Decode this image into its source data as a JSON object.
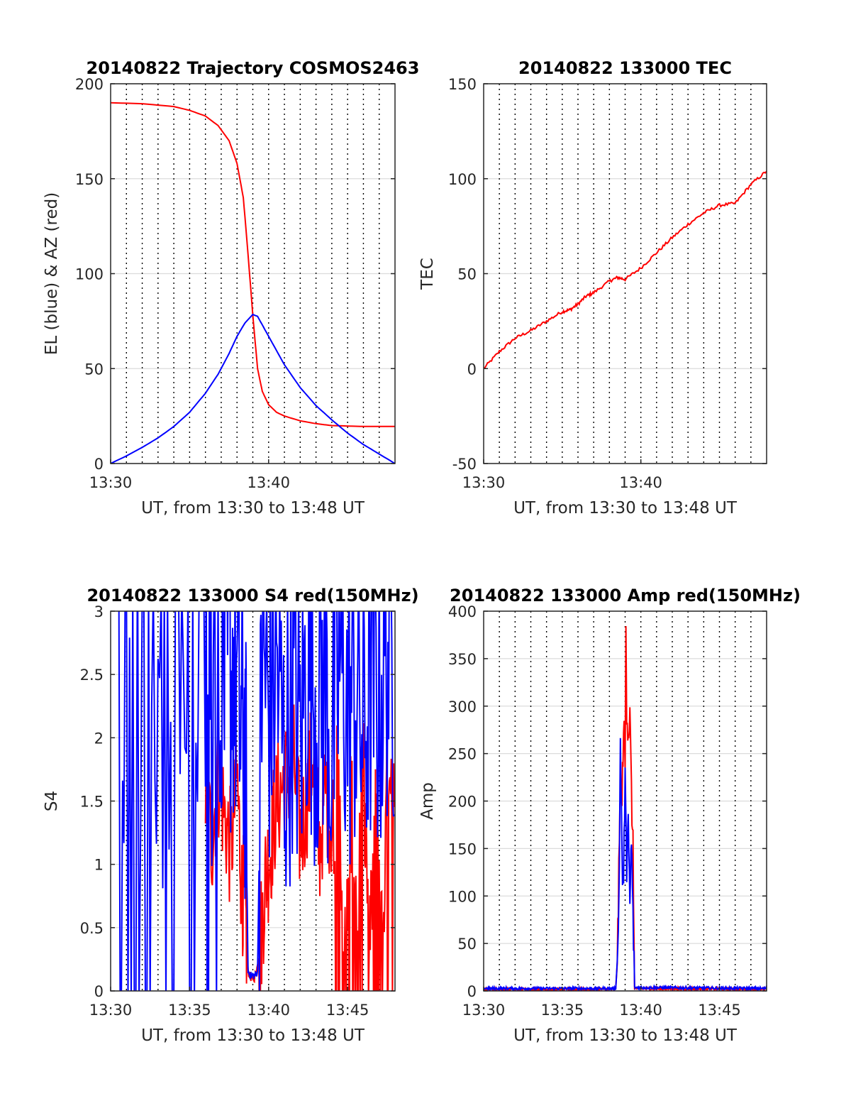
{
  "figure": {
    "background": "#ffffff",
    "colors": {
      "red": "#ff0000",
      "blue": "#0000ff",
      "grid": "#dcdcdc",
      "axis": "#262626"
    }
  },
  "chart_data": [
    {
      "id": "trajectory",
      "type": "line",
      "title": "20140822 Trajectory COSMOS2463",
      "xlabel": "UT, from 13:30 to 13:48 UT",
      "ylabel": "EL (blue) & AZ (red)",
      "xlim": [
        0,
        18
      ],
      "ylim": [
        0,
        200
      ],
      "xticks": [
        0,
        10
      ],
      "xtick_labels": [
        "13:30",
        "13:40"
      ],
      "yticks": [
        0,
        50,
        100,
        150,
        200
      ],
      "ytick_labels": [
        "0",
        "50",
        "100",
        "150",
        "200"
      ],
      "x_unit": "minutes after 13:30 UT",
      "grid": true,
      "series": [
        {
          "color": "#ff0000",
          "x": [
            0,
            2,
            4,
            5,
            6,
            6.8,
            7.5,
            8,
            8.4,
            8.7,
            9,
            9.3,
            9.6,
            10,
            10.5,
            11,
            12,
            13,
            14,
            16,
            18
          ],
          "y": [
            190,
            189.5,
            188,
            186,
            183,
            178,
            170,
            158,
            140,
            110,
            78,
            50,
            38,
            31,
            27,
            25,
            22.5,
            21,
            20,
            19.5,
            19.5
          ]
        },
        {
          "color": "#0000ff",
          "x": [
            0,
            1,
            2,
            3,
            4,
            5,
            6,
            6.8,
            7.5,
            8,
            8.5,
            9,
            9.3,
            9.6,
            10,
            10.5,
            11,
            12,
            13,
            14,
            15,
            16,
            17,
            18
          ],
          "y": [
            0,
            4,
            8.5,
            13.5,
            19.5,
            27,
            37,
            47,
            58,
            67,
            74,
            78.5,
            77.5,
            73,
            67,
            59.5,
            52,
            40,
            30.5,
            23,
            16,
            10,
            5,
            0
          ]
        }
      ]
    },
    {
      "id": "tec",
      "type": "line",
      "title": "20140822 133000 TEC",
      "xlabel": "UT, from 13:30 to 13:48 UT",
      "ylabel": "TEC",
      "xlim": [
        0,
        18
      ],
      "ylim": [
        -50,
        150
      ],
      "xticks": [
        0,
        10
      ],
      "xtick_labels": [
        "13:30",
        "13:40"
      ],
      "yticks": [
        -50,
        0,
        50,
        100,
        150
      ],
      "ytick_labels": [
        "-50",
        "0",
        "50",
        "100",
        "150"
      ],
      "x_unit": "minutes after 13:30 UT",
      "grid": true,
      "series": [
        {
          "color": "#ff0000",
          "x": [
            0,
            1,
            2,
            3,
            4,
            5,
            5.5,
            6,
            6.5,
            7,
            8,
            8.5,
            9,
            10,
            11,
            12,
            13,
            14,
            15,
            16,
            17,
            18
          ],
          "y": [
            0,
            9,
            16,
            20,
            25,
            30,
            31,
            34,
            38,
            40,
            46,
            48,
            47,
            53,
            61,
            69,
            76,
            82,
            86,
            87,
            97,
            104
          ]
        }
      ]
    },
    {
      "id": "s4",
      "type": "line",
      "title": "20140822 133000 S4 red(150MHz)",
      "xlabel": "UT, from 13:30 to 13:48 UT",
      "ylabel": "S4",
      "xlim": [
        0,
        18
      ],
      "ylim": [
        0,
        3
      ],
      "xticks": [
        0,
        5,
        10,
        15
      ],
      "xtick_labels": [
        "13:30",
        "13:35",
        "13:40",
        "13:45"
      ],
      "yticks": [
        0,
        0.5,
        1,
        1.5,
        2,
        2.5,
        3
      ],
      "ytick_labels": [
        "0",
        "0.5",
        "1",
        "1.5",
        "2",
        "2.5",
        "3"
      ],
      "x_unit": "minutes after 13:30 UT",
      "grid": true,
      "series": [
        {
          "color": "#ff0000",
          "x": [
            6.0,
            6.4,
            6.8,
            7.2,
            7.6,
            8.0,
            8.3,
            8.5,
            8.7,
            8.9,
            9.1,
            9.3,
            9.5,
            9.8,
            10.1,
            10.4,
            10.8,
            11.2,
            11.6,
            12.0,
            12.4,
            12.8,
            13.2,
            13.6,
            14.0,
            14.4,
            14.8,
            15.2,
            15.6,
            16.0,
            16.4,
            16.8,
            17.2,
            17.6,
            18.0
          ],
          "y": [
            1.5,
            1.2,
            1.7,
            1.4,
            1.1,
            1.7,
            0.8,
            0.7,
            0.15,
            0.1,
            0.1,
            0.2,
            0.4,
            0.9,
            1.1,
            1.4,
            1.6,
            1.7,
            1.8,
            1.2,
            1.5,
            1.9,
            1.1,
            1.6,
            1.3,
            1.7,
            0.2,
            1.5,
            0.6,
            1.8,
            0.3,
            1.6,
            0.4,
            1.9,
            1.5
          ]
        },
        {
          "color": "#0000ff",
          "x": [
            0.2,
            1.0,
            2.0,
            3.0,
            4.0,
            5.0,
            6.0,
            6.5,
            7.0,
            7.4,
            7.8,
            8.2,
            8.5,
            8.7,
            8.9,
            9.1,
            9.3,
            9.6,
            10.0,
            10.5,
            11.0,
            11.5,
            12.0,
            12.5,
            13.0,
            13.5,
            14.0,
            14.5,
            15.0,
            15.5,
            16.0,
            16.5,
            17.0,
            17.5,
            18.0
          ],
          "y": [
            2.5,
            2.2,
            2.6,
            2.0,
            2.4,
            2.1,
            2.6,
            2.2,
            2.8,
            2.4,
            2.6,
            2.1,
            2.0,
            0.15,
            0.12,
            0.12,
            0.15,
            2.8,
            2.2,
            2.6,
            1.8,
            2.4,
            2.0,
            2.7,
            2.3,
            2.5,
            1.9,
            2.6,
            2.2,
            2.4,
            2.0,
            2.5,
            2.3,
            2.7,
            2.6
          ]
        }
      ]
    },
    {
      "id": "amp",
      "type": "line",
      "title": "20140822 133000 Amp red(150MHz)",
      "xlabel": "UT, from 13:30 to 13:48 UT",
      "ylabel": "Amp",
      "xlim": [
        0,
        18
      ],
      "ylim": [
        0,
        400
      ],
      "xticks": [
        0,
        5,
        10,
        15
      ],
      "xtick_labels": [
        "13:30",
        "13:35",
        "13:40",
        "13:45"
      ],
      "yticks": [
        0,
        50,
        100,
        150,
        200,
        250,
        300,
        350,
        400
      ],
      "ytick_labels": [
        "0",
        "50",
        "100",
        "150",
        "200",
        "250",
        "300",
        "350",
        "400"
      ],
      "x_unit": "minutes after 13:30 UT",
      "grid": true,
      "series": [
        {
          "color": "#ff0000",
          "x": [
            0,
            8.4,
            8.5,
            8.6,
            8.7,
            8.8,
            8.9,
            9.0,
            9.05,
            9.1,
            9.2,
            9.3,
            9.4,
            9.5,
            9.6,
            18
          ],
          "y": [
            1,
            1,
            30,
            120,
            220,
            200,
            280,
            240,
            385,
            300,
            270,
            290,
            210,
            150,
            2,
            1
          ]
        },
        {
          "color": "#0000ff",
          "x": [
            0,
            8.4,
            8.5,
            8.6,
            8.7,
            8.8,
            8.9,
            9.0,
            9.1,
            9.2,
            9.3,
            9.4,
            9.5,
            9.6,
            18
          ],
          "y": [
            2,
            2,
            30,
            90,
            260,
            140,
            100,
            250,
            110,
            180,
            90,
            160,
            80,
            3,
            2
          ]
        }
      ]
    }
  ]
}
